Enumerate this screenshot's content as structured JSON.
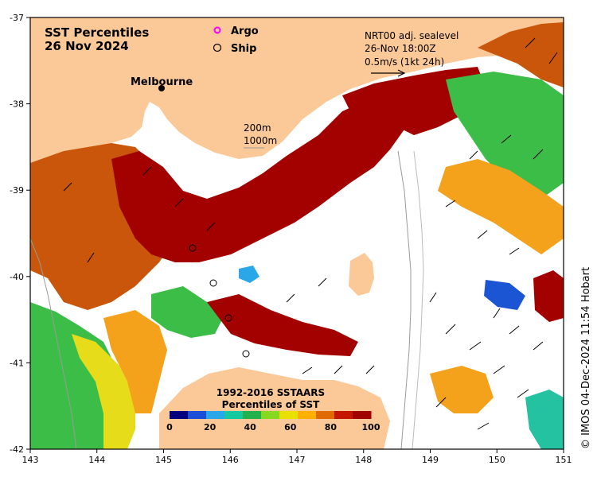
{
  "map": {
    "title_line1": "SST Percentiles",
    "title_line2": "26 Nov 2024",
    "city": "Melbourne",
    "legend_argo": "Argo",
    "legend_ship": "Ship",
    "current_note_line1": "NRT00 adj. sealevel",
    "current_note_line2": "26-Nov 18:00Z",
    "current_note_line3": "0.5m/s (1kt 24h)",
    "contour_200": "200m",
    "contour_1000": "1000m",
    "colorbar_title_line1": "1992-2016 SSTAARS",
    "colorbar_title_line2": "Percentiles of SST",
    "colorbar_ticks": [
      "0",
      "20",
      "40",
      "60",
      "80",
      "100"
    ],
    "colorbar_colors": [
      "#00007f",
      "#1a4fd6",
      "#2aa7e8",
      "#17c9a0",
      "#22b24c",
      "#86d91e",
      "#e8e000",
      "#ffb000",
      "#e06a00",
      "#c41500",
      "#a00000"
    ],
    "y_ticks": [
      "-37",
      "-38",
      "-39",
      "-40",
      "-41",
      "-42"
    ],
    "x_ticks": [
      "143",
      "144",
      "145",
      "146",
      "147",
      "148",
      "149",
      "150",
      "151"
    ],
    "copyright": "© IMOS 04-Dec-2024 11:54 Hobart",
    "colors": {
      "land": "#fbc897",
      "warm": "#a30000",
      "hot": "#c9560a",
      "orange": "#f4a21c",
      "yellow": "#e6dc1a",
      "green": "#3bbd48",
      "teal": "#25c2a2",
      "blue": "#1b55d4",
      "navy": "#00007a"
    }
  }
}
